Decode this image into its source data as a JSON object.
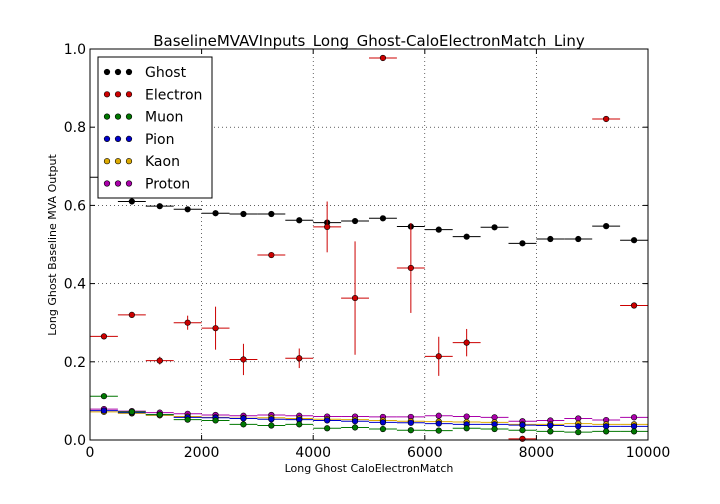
{
  "chart_data": {
    "type": "scatter",
    "title": "BaselineMVAVInputs_Long_Ghost-CaloElectronMatch_Liny",
    "xlabel": "Long Ghost CaloElectronMatch",
    "ylabel": "Long Ghost Baseline MVA Output",
    "xlim": [
      0,
      10000
    ],
    "ylim": [
      0.0,
      1.0
    ],
    "xticks": [
      0,
      2000,
      4000,
      6000,
      8000,
      10000
    ],
    "xtick_labels": [
      "0",
      "2000",
      "4000",
      "6000",
      "8000",
      "10000"
    ],
    "yticks": [
      0.0,
      0.2,
      0.4,
      0.6,
      0.8,
      1.0
    ],
    "ytick_labels": [
      "0.0",
      "0.2",
      "0.4",
      "0.6",
      "0.8",
      "1.0"
    ],
    "grid": true,
    "legend_position": "top-left",
    "bin_width": 500,
    "x": [
      250,
      750,
      1250,
      1750,
      2250,
      2750,
      3250,
      3750,
      4250,
      4750,
      5250,
      5750,
      6250,
      6750,
      7250,
      7750,
      8250,
      8750,
      9250,
      9750
    ],
    "series": [
      {
        "name": "Ghost",
        "color": "#000000",
        "values": [
          0.672,
          0.61,
          0.598,
          0.59,
          0.58,
          0.578,
          0.578,
          0.562,
          0.556,
          0.56,
          0.567,
          0.546,
          0.538,
          0.52,
          0.544,
          0.503,
          0.514,
          0.514,
          0.547,
          0.511
        ],
        "errors": [
          0.004,
          0.003,
          0.003,
          0.003,
          0.003,
          0.003,
          0.003,
          0.003,
          0.003,
          0.003,
          0.003,
          0.003,
          0.003,
          0.003,
          0.003,
          0.003,
          0.003,
          0.003,
          0.003,
          0.003
        ]
      },
      {
        "name": "Electron",
        "color": "#cc0000",
        "values": [
          0.265,
          0.32,
          0.203,
          0.3,
          0.286,
          0.206,
          0.473,
          0.209,
          0.545,
          0.363,
          0.977,
          0.44,
          0.214,
          0.249,
          null,
          0.003,
          null,
          null,
          0.821,
          0.344
        ],
        "errors": [
          0.0,
          0.0,
          0.01,
          0.018,
          0.055,
          0.04,
          0.0,
          0.025,
          0.065,
          0.145,
          0.0,
          0.115,
          0.05,
          0.035,
          0,
          0.0,
          0,
          0,
          0.0,
          0.0
        ]
      },
      {
        "name": "Muon",
        "color": "#007700",
        "values": [
          0.112,
          0.072,
          0.065,
          0.052,
          0.05,
          0.04,
          0.037,
          0.04,
          0.03,
          0.032,
          0.028,
          0.025,
          0.024,
          0.03,
          0.028,
          0.025,
          0.022,
          0.02,
          0.022,
          0.022
        ],
        "errors": [
          0,
          0,
          0,
          0,
          0,
          0,
          0,
          0,
          0,
          0,
          0,
          0,
          0,
          0,
          0,
          0,
          0,
          0,
          0,
          0
        ]
      },
      {
        "name": "Pion",
        "color": "#0000cc",
        "values": [
          0.075,
          0.07,
          0.065,
          0.058,
          0.057,
          0.055,
          0.053,
          0.052,
          0.05,
          0.048,
          0.045,
          0.044,
          0.042,
          0.04,
          0.04,
          0.038,
          0.037,
          0.035,
          0.035,
          0.035
        ],
        "errors": [
          0,
          0,
          0,
          0,
          0,
          0,
          0,
          0,
          0,
          0,
          0,
          0,
          0,
          0,
          0,
          0,
          0,
          0,
          0,
          0
        ]
      },
      {
        "name": "Kaon",
        "color": "#ddaa00",
        "values": [
          0.072,
          0.068,
          0.063,
          0.06,
          0.058,
          0.056,
          0.057,
          0.055,
          0.053,
          0.052,
          0.05,
          0.048,
          0.047,
          0.046,
          0.045,
          0.04,
          0.04,
          0.042,
          0.04,
          0.04
        ],
        "errors": [
          0,
          0,
          0,
          0,
          0,
          0,
          0,
          0,
          0,
          0,
          0,
          0,
          0,
          0,
          0,
          0,
          0,
          0,
          0,
          0
        ]
      },
      {
        "name": "Proton",
        "color": "#aa00aa",
        "values": [
          0.079,
          0.074,
          0.07,
          0.067,
          0.064,
          0.062,
          0.064,
          0.062,
          0.06,
          0.06,
          0.059,
          0.059,
          0.062,
          0.06,
          0.058,
          0.048,
          0.05,
          0.055,
          0.051,
          0.058
        ],
        "errors": [
          0,
          0,
          0,
          0,
          0,
          0,
          0,
          0,
          0,
          0,
          0,
          0,
          0,
          0,
          0,
          0,
          0,
          0,
          0,
          0
        ]
      }
    ]
  }
}
